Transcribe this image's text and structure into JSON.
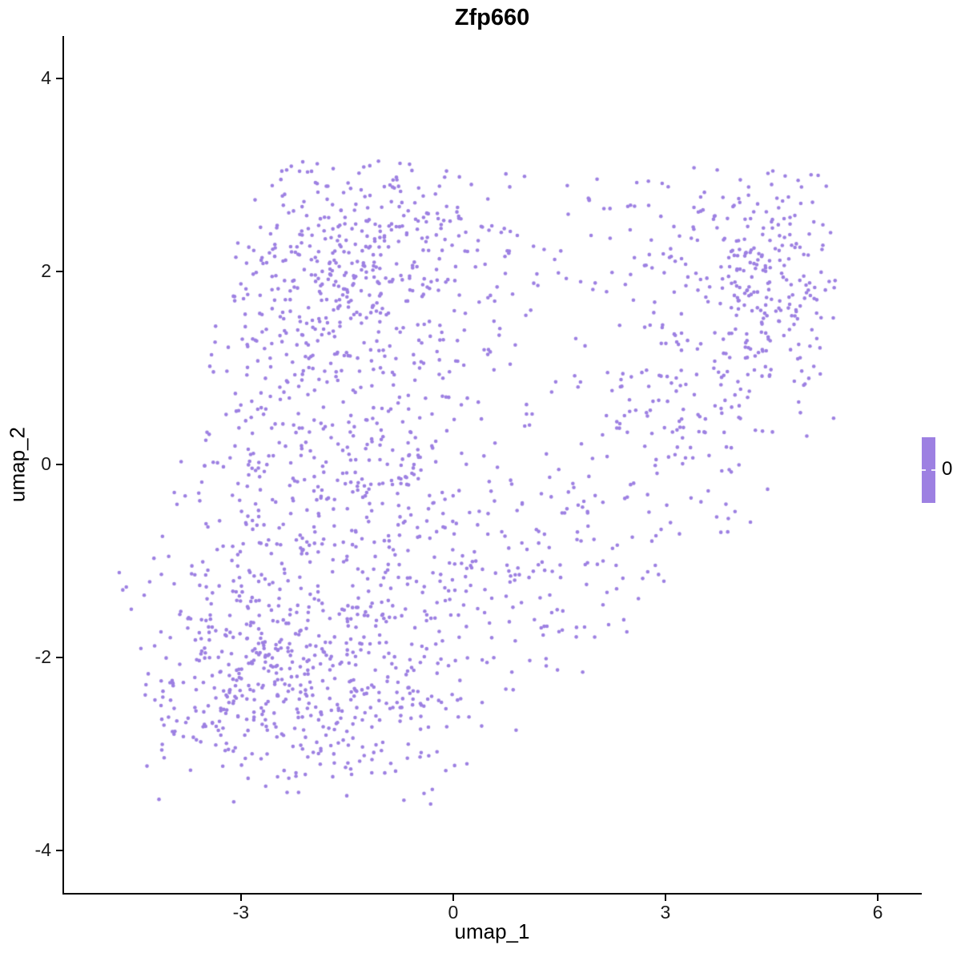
{
  "chart_data": {
    "type": "scatter",
    "title": "Zfp660",
    "xlabel": "umap_1",
    "ylabel": "umap_2",
    "x_ticks": [
      -3,
      0,
      3,
      6
    ],
    "y_ticks": [
      4,
      2,
      0,
      -2,
      -4
    ],
    "x_domain": [
      -5.5,
      6.6
    ],
    "y_domain": [
      -4.44,
      4.44
    ],
    "grid": false,
    "background": "#FFFFFF",
    "axis_color": "#000000",
    "tick_label_color": "#1a1a1a",
    "point_color": "#9D80E2",
    "point_radius": 2.3,
    "legend": {
      "position": "right",
      "label": "0",
      "bar_color": "#9D80E2",
      "tick_color": "#FFFFFF"
    },
    "seed": 20660,
    "clusters": [
      {
        "cx": -1.5,
        "cy": 2.0,
        "sx": 1.15,
        "sy": 0.6,
        "n": 380
      },
      {
        "cx": -0.5,
        "cy": 2.6,
        "sx": 0.75,
        "sy": 0.35,
        "n": 70
      },
      {
        "cx": -2.4,
        "cy": 0.2,
        "sx": 0.95,
        "sy": 1.0,
        "n": 300
      },
      {
        "cx": -0.5,
        "cy": -0.4,
        "sx": 0.95,
        "sy": 1.0,
        "n": 240
      },
      {
        "cx": -2.8,
        "cy": -2.15,
        "sx": 0.9,
        "sy": 0.65,
        "n": 400
      },
      {
        "cx": -1.1,
        "cy": -2.4,
        "sx": 0.75,
        "sy": 0.6,
        "n": 170
      },
      {
        "cx": 1.1,
        "cy": -1.2,
        "sx": 0.8,
        "sy": 0.75,
        "n": 110
      },
      {
        "cx": 2.6,
        "cy": 0.2,
        "sx": 0.65,
        "sy": 0.8,
        "n": 90
      },
      {
        "cx": 3.6,
        "cy": 0.9,
        "sx": 0.6,
        "sy": 0.9,
        "n": 110
      },
      {
        "cx": 4.5,
        "cy": 1.9,
        "sx": 0.5,
        "sy": 0.65,
        "n": 230
      },
      {
        "cx": 2.9,
        "cy": 2.3,
        "sx": 0.75,
        "sy": 0.45,
        "n": 70
      }
    ],
    "outlier_points": [
      [
        -4.72,
        -1.12
      ],
      [
        -4.62,
        -1.27
      ],
      [
        -4.67,
        -1.3
      ],
      [
        -4.55,
        -1.5
      ]
    ],
    "clip": {
      "y_max": 3.2,
      "y_min": -3.55,
      "x_min": -4.45,
      "x_max": 5.4,
      "lower_right_edge": {
        "slope": 0.7,
        "intercept": -3.55
      },
      "upper_left_edge": {
        "slope": 2.57,
        "intercept": 10.14
      }
    }
  }
}
